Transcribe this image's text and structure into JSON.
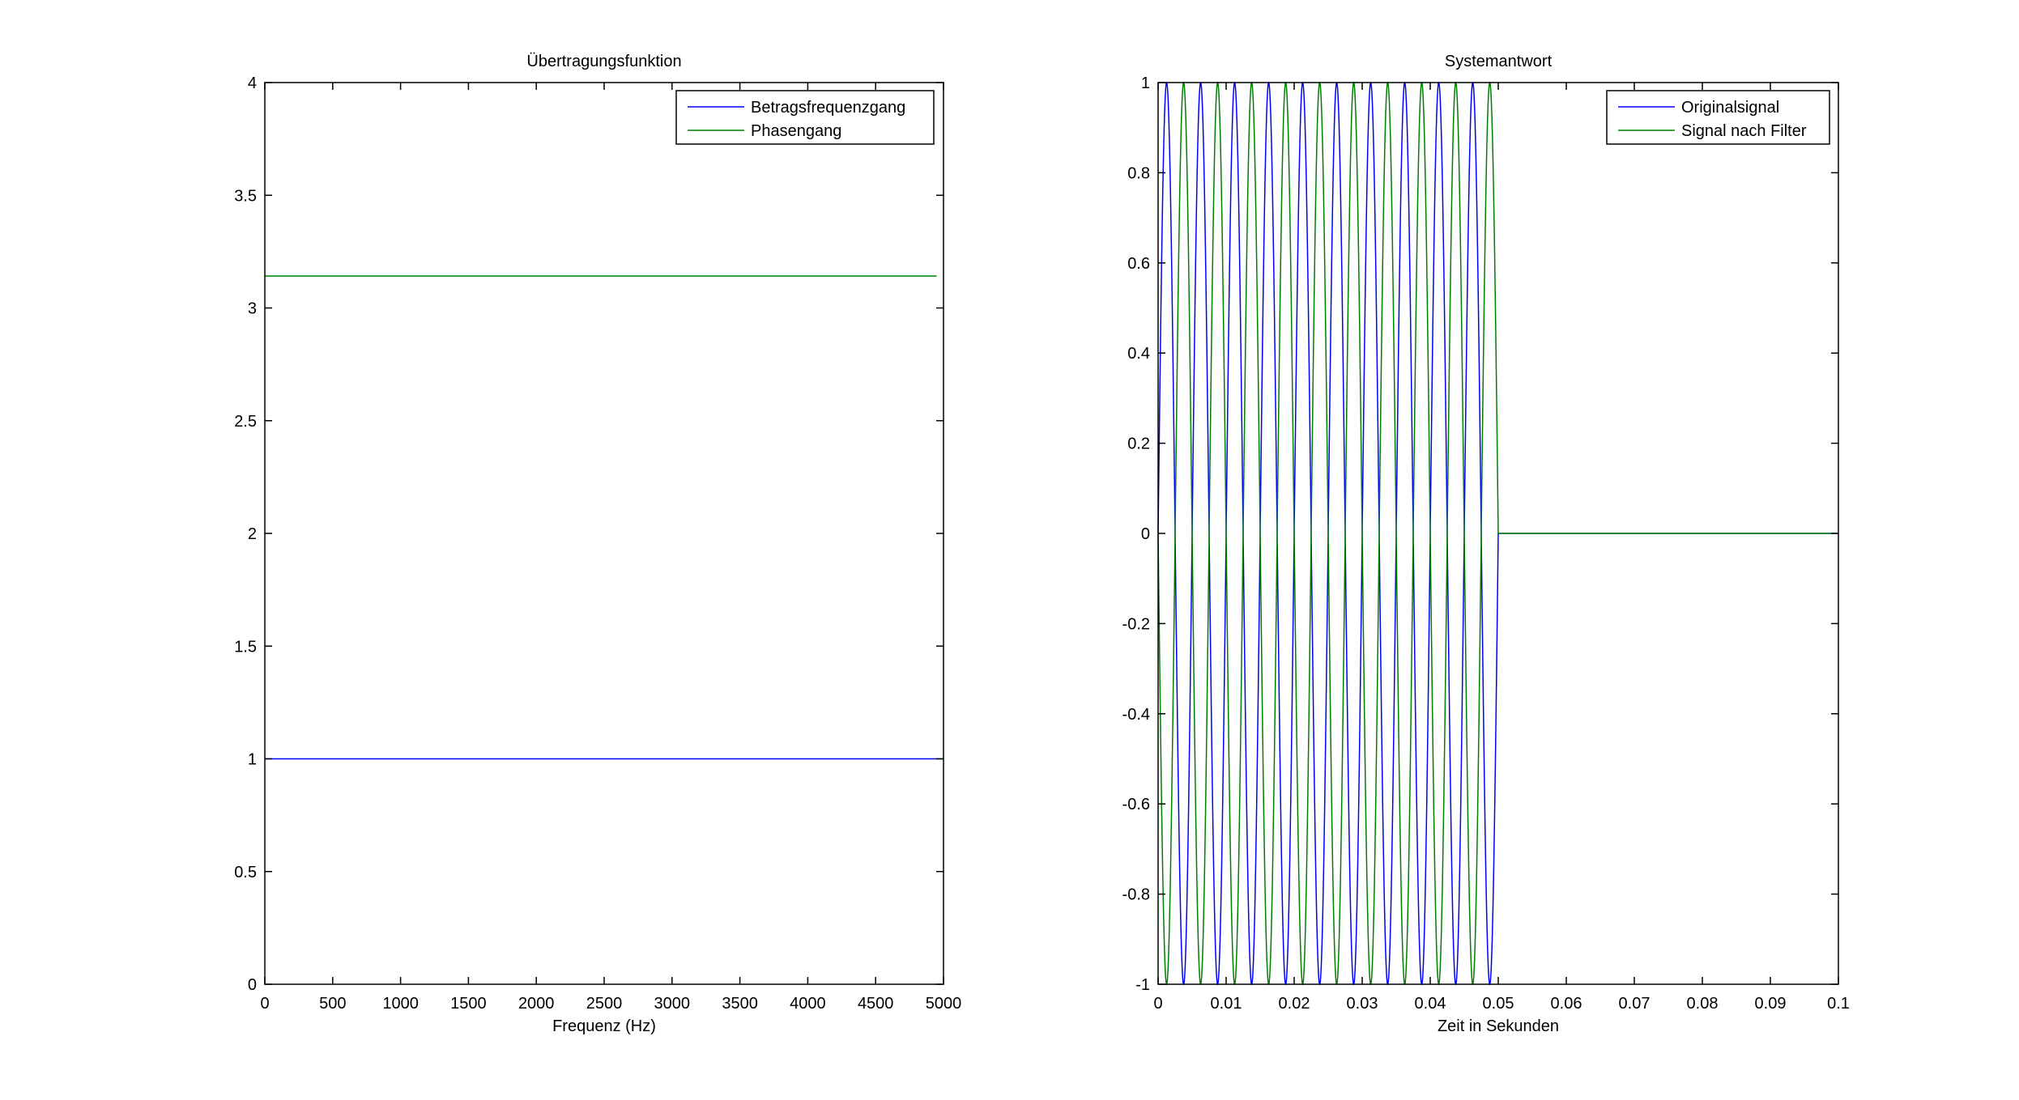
{
  "chart_data": [
    {
      "type": "line",
      "title": "Übertragungsfunktion",
      "xlabel": "Frequenz (Hz)",
      "ylabel": "",
      "xlim": [
        0,
        5000
      ],
      "ylim": [
        0,
        4
      ],
      "xticks": [
        0,
        500,
        1000,
        1500,
        2000,
        2500,
        3000,
        3500,
        4000,
        4500,
        5000
      ],
      "xtick_labels": [
        "0",
        "500",
        "1000",
        "1500",
        "2000",
        "2500",
        "3000",
        "3500",
        "4000",
        "4500",
        "5000"
      ],
      "yticks": [
        0,
        0.5,
        1,
        1.5,
        2,
        2.5,
        3,
        3.5,
        4
      ],
      "ytick_labels": [
        "0",
        "0.5",
        "1",
        "1.5",
        "2",
        "2.5",
        "3",
        "3.5",
        "4"
      ],
      "grid": false,
      "legend_position": "top-right",
      "series": [
        {
          "name": "Betragsfrequenzgang",
          "color": "#0000ff",
          "x": [
            0,
            5000
          ],
          "y": [
            1,
            1
          ]
        },
        {
          "name": "Phasengang",
          "color": "#008000",
          "x": [
            0,
            4950
          ],
          "y": [
            3.1416,
            3.1416
          ]
        }
      ]
    },
    {
      "type": "line",
      "title": "Systemantwort",
      "xlabel": "Zeit in Sekunden",
      "ylabel": "",
      "xlim": [
        0,
        0.1
      ],
      "ylim": [
        -1,
        1
      ],
      "xticks": [
        0,
        0.01,
        0.02,
        0.03,
        0.04,
        0.05,
        0.06,
        0.07,
        0.08,
        0.09,
        0.1
      ],
      "xtick_labels": [
        "0",
        "0.01",
        "0.02",
        "0.03",
        "0.04",
        "0.05",
        "0.06",
        "0.07",
        "0.08",
        "0.09",
        "0.1"
      ],
      "yticks": [
        -1,
        -0.8,
        -0.6,
        -0.4,
        -0.2,
        0,
        0.2,
        0.4,
        0.6,
        0.8,
        1
      ],
      "ytick_labels": [
        "-1",
        "-0.8",
        "-0.6",
        "-0.4",
        "-0.2",
        "0",
        "0.2",
        "0.4",
        "0.6",
        "0.8",
        "1"
      ],
      "grid": false,
      "legend_position": "top-right",
      "series": [
        {
          "name": "Originalsignal",
          "color": "#0000ff",
          "function": "sine",
          "amplitude": 1,
          "frequency_hz": 200,
          "phase_sign": 1,
          "t_end": 0.05
        },
        {
          "name": "Signal nach Filter",
          "color": "#008000",
          "function": "sine",
          "amplitude": 1,
          "frequency_hz": 200,
          "phase_sign": -1,
          "t_end": 0.05
        }
      ]
    }
  ]
}
